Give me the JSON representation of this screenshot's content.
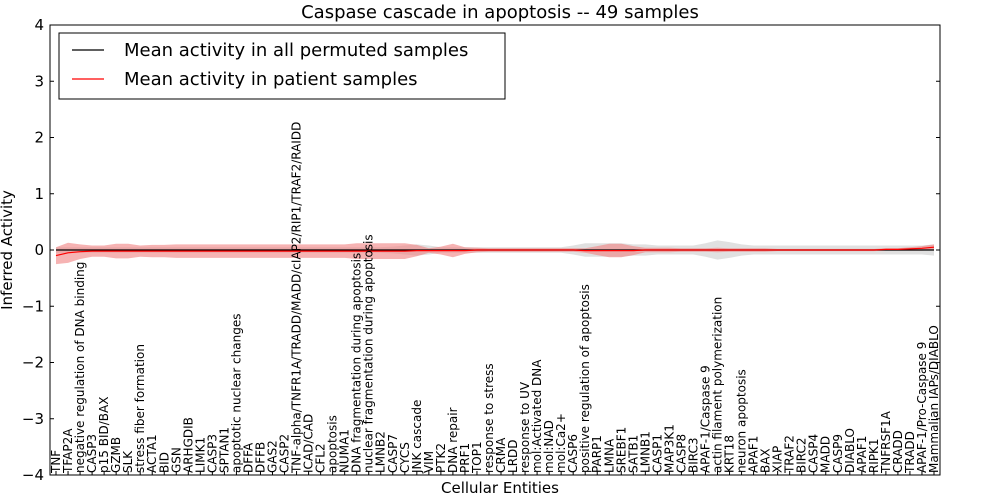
{
  "chart_data": {
    "type": "line",
    "title": "Caspase cascade in apoptosis -- 49 samples",
    "xlabel": "Cellular Entities",
    "ylabel": "Inferred Activity",
    "ylim": [
      -4,
      4
    ],
    "yticks": [
      -4,
      -3,
      -2,
      -1,
      0,
      1,
      2,
      3,
      4
    ],
    "ytick_labels": [
      "−4",
      "−3",
      "−2",
      "−1",
      "0",
      "1",
      "2",
      "3",
      "4"
    ],
    "legend_position": "top-left",
    "categories": [
      "TNF",
      "TFAP2A",
      "negative regulation of DNA binding",
      "CASP3",
      "p15 BID/BAX",
      "GZMB",
      "SLK",
      "stress fiber formation",
      "ACTA1",
      "BID",
      "GSN",
      "ARHGDIB",
      "LIMK1",
      "CASP3",
      "SPTAN1",
      "apoptotic nuclear changes",
      "DFFA",
      "DFFB",
      "GAS2",
      "CASP2",
      "TNF-alpha/TNFR1A/TRADD/MADD/cIAP2/RIP1/TRAF2/RAIDD",
      "ICAD/CAD",
      "CFL2",
      "apoptosis",
      "NUMA1",
      "DNA fragmentation during apoptosis",
      "nuclear fragmentation during apoptosis",
      "LMNB2",
      "CASP7",
      "CYCS",
      "JNK cascade",
      "VIM",
      "PTK2",
      "DNA repair",
      "PRF1",
      "TOP1",
      "response to stress",
      "CRMA",
      "LRDD",
      "response to UV",
      "mol:Activated DNA",
      "mol:NAD",
      "mol:Ca2+",
      "CASP6",
      "positive regulation of apoptosis",
      "PARP1",
      "LMNA",
      "SREBF1",
      "SATB1",
      "LMNB1",
      "CASP1",
      "MAP3K1",
      "CASP8",
      "BIRC3",
      "APAF-1/Caspase 9",
      "actin filament polymerization",
      "KRT18",
      "neuron apoptosis",
      "APAF1",
      "BAX",
      "XIAP",
      "TRAF2",
      "BIRC2",
      "CASP4",
      "MADD",
      "CASP9",
      "DIABLO",
      "APAF1",
      "RIPK1",
      "TNFRSF1A",
      "CRADD",
      "TRADD",
      "APAF-1/Pro-Caspase 9",
      "Mammalian IAPs/DIABLO"
    ],
    "series": [
      {
        "name": "Mean activity in all permuted samples",
        "color": "#000000",
        "band_color": "#bbbbbb",
        "values": [
          0.0,
          0.0,
          0.0,
          0.0,
          0.0,
          0.0,
          0.0,
          0.0,
          0.0,
          0.0,
          0.0,
          0.0,
          0.0,
          0.0,
          0.0,
          0.0,
          0.0,
          0.0,
          0.0,
          0.0,
          0.0,
          0.0,
          0.0,
          0.0,
          0.0,
          0.0,
          0.0,
          0.0,
          0.0,
          0.0,
          0.0,
          0.0,
          0.0,
          0.0,
          0.0,
          0.0,
          0.0,
          0.0,
          0.0,
          0.0,
          0.0,
          0.0,
          0.0,
          0.0,
          0.0,
          0.0,
          0.0,
          0.0,
          0.0,
          0.0,
          0.0,
          0.0,
          0.0,
          0.0,
          0.0,
          0.0,
          0.0,
          0.0,
          0.0,
          0.0,
          0.0,
          0.0,
          0.0,
          0.0,
          0.0,
          0.0,
          0.0,
          0.0,
          0.0,
          0.0,
          0.0,
          0.0,
          0.0,
          0.0
        ],
        "band": [
          0.05,
          0.05,
          0.05,
          0.05,
          0.05,
          0.05,
          0.05,
          0.05,
          0.05,
          0.05,
          0.05,
          0.05,
          0.05,
          0.05,
          0.05,
          0.05,
          0.05,
          0.05,
          0.05,
          0.05,
          0.05,
          0.05,
          0.05,
          0.05,
          0.05,
          0.05,
          0.05,
          0.05,
          0.06,
          0.08,
          0.1,
          0.08,
          0.05,
          0.05,
          0.05,
          0.05,
          0.05,
          0.05,
          0.05,
          0.05,
          0.05,
          0.05,
          0.05,
          0.08,
          0.12,
          0.12,
          0.12,
          0.12,
          0.1,
          0.1,
          0.08,
          0.08,
          0.08,
          0.08,
          0.12,
          0.17,
          0.14,
          0.1,
          0.08,
          0.08,
          0.08,
          0.08,
          0.08,
          0.08,
          0.08,
          0.08,
          0.08,
          0.08,
          0.08,
          0.08,
          0.08,
          0.08,
          0.08,
          0.1
        ]
      },
      {
        "name": "Mean activity in patient samples",
        "color": "#ff0000",
        "band_color": "#f08080",
        "values": [
          -0.1,
          -0.05,
          -0.03,
          -0.02,
          -0.02,
          -0.02,
          -0.02,
          -0.02,
          -0.02,
          -0.02,
          -0.02,
          -0.02,
          -0.02,
          -0.02,
          -0.02,
          -0.02,
          -0.02,
          -0.02,
          -0.02,
          -0.02,
          -0.02,
          -0.02,
          -0.02,
          -0.02,
          -0.02,
          -0.02,
          -0.02,
          -0.02,
          -0.02,
          -0.02,
          -0.01,
          -0.01,
          -0.01,
          -0.01,
          -0.01,
          0.0,
          0.0,
          0.0,
          0.0,
          0.0,
          0.0,
          0.0,
          0.0,
          0.0,
          -0.01,
          -0.01,
          -0.01,
          -0.01,
          -0.01,
          0.0,
          0.0,
          0.0,
          0.0,
          0.0,
          0.0,
          0.0,
          0.0,
          0.0,
          0.0,
          0.0,
          0.0,
          0.0,
          0.0,
          0.0,
          0.0,
          0.0,
          0.0,
          0.0,
          0.0,
          0.01,
          0.01,
          0.02,
          0.03,
          0.05
        ],
        "band": [
          0.15,
          0.18,
          0.13,
          0.1,
          0.1,
          0.13,
          0.13,
          0.1,
          0.11,
          0.11,
          0.12,
          0.12,
          0.12,
          0.12,
          0.12,
          0.12,
          0.12,
          0.12,
          0.12,
          0.12,
          0.12,
          0.12,
          0.12,
          0.12,
          0.12,
          0.14,
          0.14,
          0.14,
          0.14,
          0.14,
          0.1,
          0.04,
          0.07,
          0.12,
          0.06,
          0.04,
          0.03,
          0.03,
          0.03,
          0.03,
          0.03,
          0.03,
          0.03,
          0.03,
          0.04,
          0.08,
          0.12,
          0.12,
          0.08,
          0.04,
          0.04,
          0.04,
          0.03,
          0.03,
          0.03,
          0.04,
          0.03,
          0.03,
          0.03,
          0.03,
          0.02,
          0.02,
          0.02,
          0.02,
          0.02,
          0.02,
          0.02,
          0.02,
          0.02,
          0.02,
          0.02,
          0.03,
          0.04,
          0.05
        ]
      }
    ]
  }
}
